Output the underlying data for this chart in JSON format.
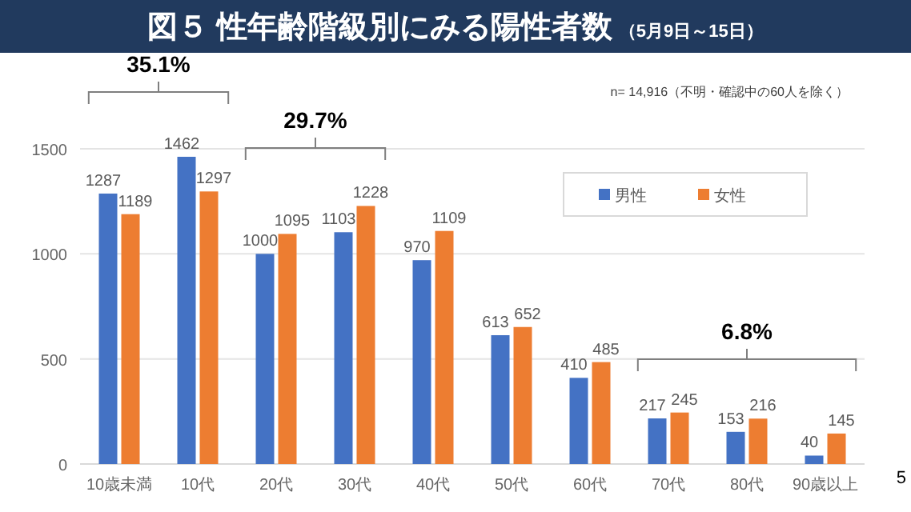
{
  "chart_data": {
    "type": "bar",
    "title": "図５ 性年齢階級別にみる陽性者数",
    "subtitle": "（5月9日～15日）",
    "categories": [
      "10歳未満",
      "10代",
      "20代",
      "30代",
      "40代",
      "50代",
      "60代",
      "70代",
      "80代",
      "90歳以上"
    ],
    "series": [
      {
        "name": "男性",
        "color": "#4472c4",
        "values": [
          1287,
          1462,
          1000,
          1103,
          970,
          613,
          410,
          217,
          153,
          40
        ]
      },
      {
        "name": "女性",
        "color": "#ed7d31",
        "values": [
          1189,
          1297,
          1095,
          1228,
          1109,
          652,
          485,
          245,
          216,
          145
        ]
      }
    ],
    "ylim": [
      0,
      1500
    ],
    "yticks": [
      0,
      500,
      1000,
      1500
    ],
    "grid": "y",
    "legend": "top right",
    "data_labels": true,
    "annotations": [
      "35.1%",
      "29.7%",
      "6.8%",
      "n= 14,916（不明・確認中の60人を除く）",
      "5"
    ]
  }
}
